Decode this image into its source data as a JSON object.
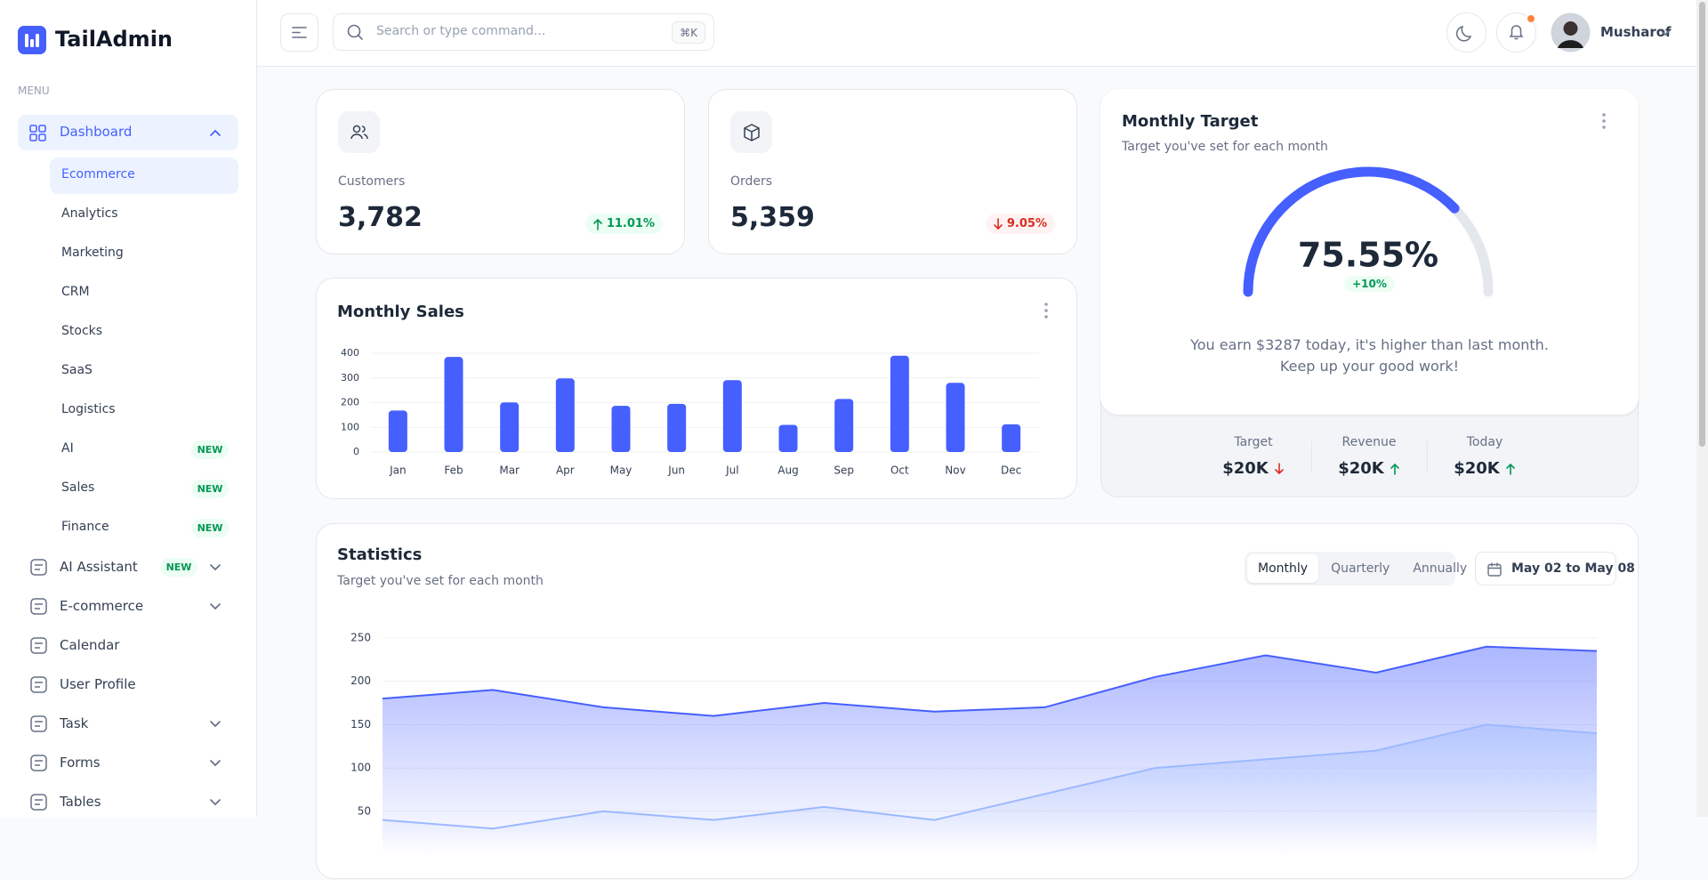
{
  "sidebar": {
    "logo": "TailAdmin",
    "menu_label": "MENU",
    "dashboard": {
      "label": "Dashboard",
      "items": [
        {
          "label": "Ecommerce"
        },
        {
          "label": "Analytics"
        },
        {
          "label": "Marketing"
        },
        {
          "label": "CRM"
        },
        {
          "label": "Stocks"
        },
        {
          "label": "SaaS"
        },
        {
          "label": "Logistics"
        },
        {
          "label": "AI",
          "badge": "NEW"
        },
        {
          "label": "Sales",
          "badge": "NEW"
        },
        {
          "label": "Finance",
          "badge": "NEW"
        }
      ]
    },
    "items": [
      {
        "label": "AI Assistant",
        "badge": "NEW",
        "expandable": true
      },
      {
        "label": "E-commerce",
        "expandable": true
      },
      {
        "label": "Calendar",
        "expandable": false
      },
      {
        "label": "User Profile",
        "expandable": false
      },
      {
        "label": "Task",
        "expandable": true
      },
      {
        "label": "Forms",
        "expandable": true
      },
      {
        "label": "Tables",
        "expandable": true
      }
    ]
  },
  "header": {
    "search_placeholder": "Search or type command...",
    "shortcut": "⌘K",
    "user_name": "Musharof"
  },
  "metrics": [
    {
      "label": "Customers",
      "value": "3,782",
      "change": "11.01%",
      "trend": "up"
    },
    {
      "label": "Orders",
      "value": "5,359",
      "change": "9.05%",
      "trend": "down"
    }
  ],
  "monthly_sales": {
    "type": "bar",
    "title": "Monthly Sales",
    "categories": [
      "Jan",
      "Feb",
      "Mar",
      "Apr",
      "May",
      "Jun",
      "Jul",
      "Aug",
      "Sep",
      "Oct",
      "Nov",
      "Dec"
    ],
    "values": [
      168,
      385,
      201,
      298,
      187,
      195,
      291,
      110,
      215,
      390,
      280,
      112
    ],
    "color": "#465fff",
    "ylim": [
      0,
      400
    ],
    "yticks": [
      0,
      100,
      200,
      300,
      400
    ],
    "grid": true
  },
  "monthly_target": {
    "type": "gauge",
    "title": "Monthly Target",
    "subtitle": "Target you've set for each month",
    "value": 75.55,
    "value_label": "75.55%",
    "ylim": [
      0,
      100
    ],
    "color": "#465fff",
    "change": "+10%",
    "message": [
      "You earn $3287 today, it's higher than last month.",
      "Keep up your good work!"
    ],
    "stats": [
      {
        "label": "Target",
        "value": "$20K",
        "trend": "down"
      },
      {
        "label": "Revenue",
        "value": "$20K",
        "trend": "up"
      },
      {
        "label": "Today",
        "value": "$20K",
        "trend": "up"
      }
    ]
  },
  "statistics": {
    "type": "area",
    "title": "Statistics",
    "subtitle": "Target you've set for each month",
    "tabs": [
      "Monthly",
      "Quarterly",
      "Annually"
    ],
    "active_tab": 0,
    "date_range": "May 02 to May 08",
    "series": [
      {
        "color": "#465fff",
        "values": [
          180,
          190,
          170,
          160,
          175,
          165,
          170,
          205,
          230,
          210,
          240,
          235
        ]
      },
      {
        "color": "#9cb9ff",
        "values": [
          40,
          30,
          50,
          40,
          55,
          40,
          70,
          100,
          110,
          120,
          150,
          140
        ]
      }
    ],
    "ylim": [
      0,
      250
    ],
    "yticks": [
      50,
      100,
      150,
      200,
      250
    ],
    "grid": true
  }
}
